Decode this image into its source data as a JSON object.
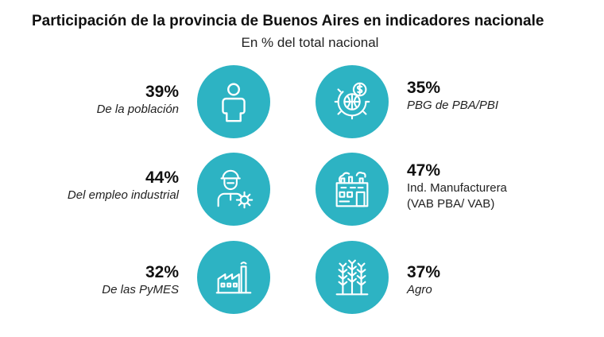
{
  "header": {
    "title": "Participación de la provincia de Buenos Aires en indicadores nacionale",
    "subtitle": "En % del total nacional"
  },
  "colors": {
    "circle": "#2db3c3",
    "icon_stroke": "#ffffff"
  },
  "indicators": [
    {
      "percent": "39%",
      "label": "De la población",
      "icon": "person-icon"
    },
    {
      "percent": "35%",
      "label": "PBG de PBA/PBI",
      "icon": "globe-money-gear-icon"
    },
    {
      "percent": "44%",
      "label": "Del empleo industrial",
      "icon": "worker-gear-icon"
    },
    {
      "percent": "47%",
      "label_line1": "Ind. Manufacturera",
      "label_line2": "(VAB PBA/ VAB)",
      "icon": "industry-building-icon"
    },
    {
      "percent": "32%",
      "label": "De las PyMES",
      "icon": "factory-icon"
    },
    {
      "percent": "37%",
      "label": "Agro",
      "icon": "wheat-icon"
    }
  ]
}
